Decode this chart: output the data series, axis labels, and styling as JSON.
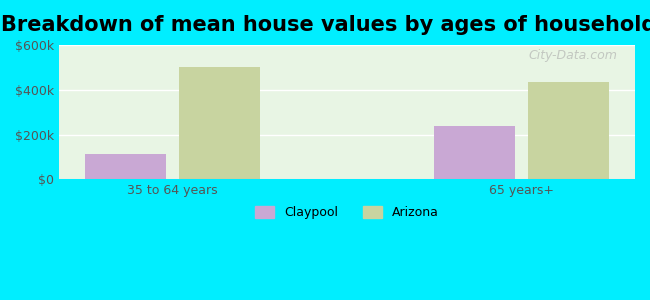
{
  "title": "Breakdown of mean house values by ages of householders",
  "categories": [
    "35 to 64 years",
    "65 years+"
  ],
  "series": {
    "Claypool": [
      115000,
      240000
    ],
    "Arizona": [
      500000,
      435000
    ]
  },
  "bar_colors": {
    "Claypool": "#c9a8d4",
    "Arizona": "#c8d4a0"
  },
  "ylim": [
    0,
    600000
  ],
  "yticks": [
    0,
    200000,
    400000,
    600000
  ],
  "ytick_labels": [
    "$0",
    "$200k",
    "$400k",
    "$600k"
  ],
  "background_color": "#00eeff",
  "plot_bg_color": "#e8f5e4",
  "title_fontsize": 15,
  "bar_width": 0.3,
  "watermark": "City-Data.com"
}
